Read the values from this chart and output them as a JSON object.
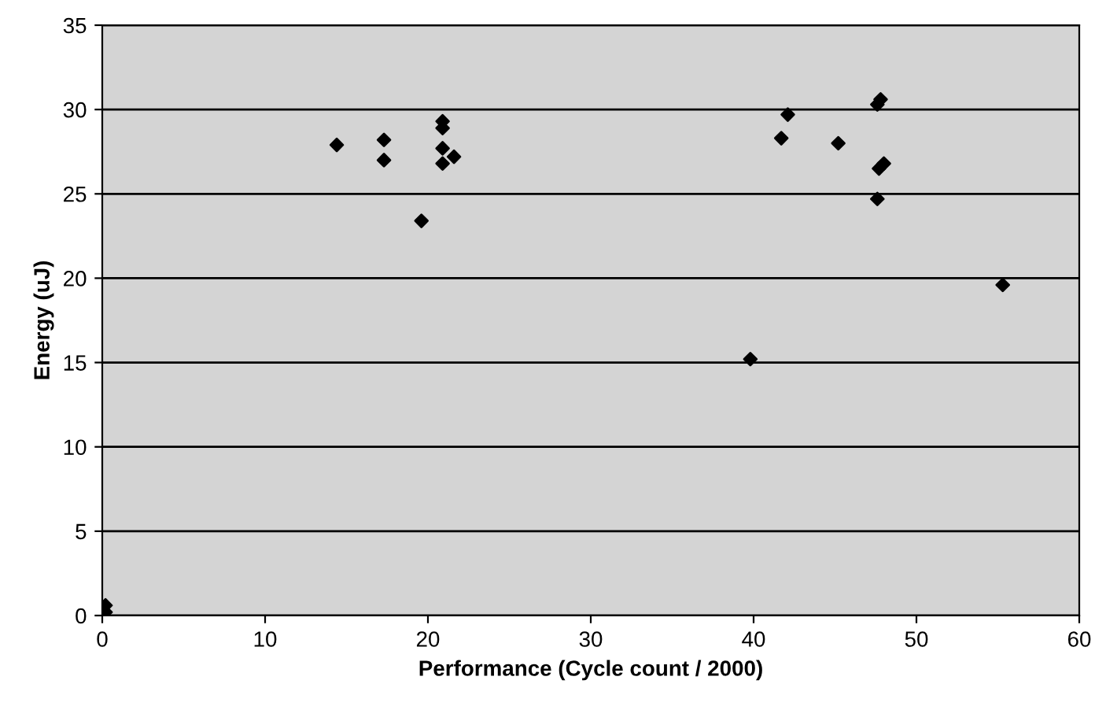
{
  "chart_data": {
    "type": "scatter",
    "xlabel": "Performance (Cycle count / 2000)",
    "ylabel": "Energy (uJ)",
    "x": [
      0.2,
      0.2,
      14.4,
      17.3,
      17.3,
      19.6,
      20.9,
      20.9,
      20.9,
      21.6,
      20.9,
      39.8,
      41.7,
      42.1,
      45.2,
      47.6,
      47.8,
      47.7,
      48.0,
      47.6,
      55.3
    ],
    "series": [
      {
        "color": "#000000",
        "values": [
          0.2,
          0.6,
          27.9,
          28.2,
          27.0,
          23.4,
          29.3,
          28.9,
          27.7,
          27.2,
          26.8,
          15.2,
          28.3,
          29.7,
          28.0,
          30.3,
          30.6,
          26.5,
          26.8,
          24.7,
          19.6
        ]
      }
    ],
    "xlim": [
      0,
      60
    ],
    "xticks": [
      0,
      10,
      20,
      30,
      40,
      50,
      60
    ],
    "ylim": [
      0,
      35
    ],
    "yticks": [
      0,
      5,
      10,
      15,
      20,
      25,
      30,
      35
    ],
    "grid": "y",
    "marker": "diamond",
    "legend": false
  }
}
